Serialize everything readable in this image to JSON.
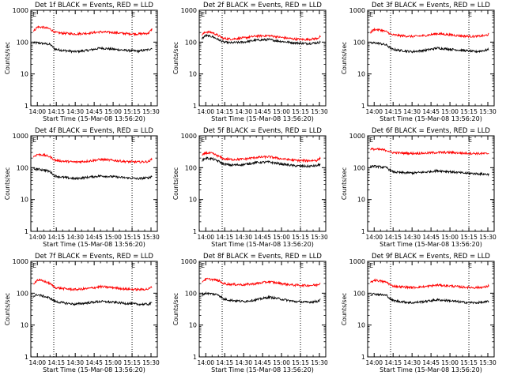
{
  "figure": {
    "xlabel": "Start Time (15-Mar-08 13:56:20)",
    "ylabel": "Counts/sec",
    "xticks": [
      "14:00",
      "14:15",
      "14:30",
      "14:45",
      "15:00",
      "15:15",
      "15:30"
    ],
    "yticks": [
      "1",
      "10",
      "100",
      "1000"
    ],
    "marker_label": "E",
    "colors": {
      "events": "#000000",
      "lld": "#ff0000",
      "axes": "#000000",
      "background": "#ffffff"
    }
  },
  "chart_data": [
    {
      "type": "line",
      "title": "Det 1f BLACK = Events, RED = LLD",
      "xlabel": "Start Time (15-Mar-08 13:56:20)",
      "ylabel": "Counts/sec",
      "ylim": [
        1,
        1000
      ],
      "yscale": "log",
      "grid": false,
      "x": [
        "13:57",
        "14:00",
        "14:05",
        "14:10",
        "14:14",
        "14:20",
        "14:30",
        "14:40",
        "14:50",
        "15:00",
        "15:10",
        "15:20",
        "15:28",
        "15:31"
      ],
      "series": [
        {
          "name": "Events",
          "color": "#000000",
          "values": [
            95,
            95,
            90,
            85,
            60,
            55,
            50,
            55,
            65,
            60,
            55,
            52,
            58,
            65
          ]
        },
        {
          "name": "LLD",
          "color": "#ff0000",
          "values": [
            220,
            300,
            290,
            260,
            200,
            190,
            180,
            190,
            210,
            200,
            185,
            180,
            190,
            260
          ]
        }
      ],
      "markers": [
        "14:13",
        "15:15"
      ]
    },
    {
      "type": "line",
      "title": "Det 2f BLACK = Events, RED = LLD",
      "xlabel": "Start Time (15-Mar-08 13:56:20)",
      "ylabel": "Counts/sec",
      "ylim": [
        1,
        1000
      ],
      "yscale": "log",
      "grid": false,
      "x": [
        "13:57",
        "14:00",
        "14:05",
        "14:10",
        "14:14",
        "14:20",
        "14:30",
        "14:40",
        "14:50",
        "15:00",
        "15:10",
        "15:20",
        "15:28",
        "15:31"
      ],
      "series": [
        {
          "name": "Events",
          "color": "#000000",
          "values": [
            130,
            160,
            150,
            120,
            100,
            95,
            100,
            115,
            120,
            105,
            95,
            90,
            95,
            100
          ]
        },
        {
          "name": "LLD",
          "color": "#ff0000",
          "values": [
            170,
            210,
            200,
            160,
            130,
            125,
            135,
            155,
            160,
            140,
            125,
            120,
            130,
            150
          ]
        }
      ],
      "markers": [
        "14:13",
        "15:15"
      ]
    },
    {
      "type": "line",
      "title": "Det 3f BLACK = Events, RED = LLD",
      "xlabel": "Start Time (15-Mar-08 13:56:20)",
      "ylabel": "Counts/sec",
      "ylim": [
        1,
        1000
      ],
      "yscale": "log",
      "grid": false,
      "x": [
        "13:57",
        "14:00",
        "14:05",
        "14:10",
        "14:14",
        "14:20",
        "14:30",
        "14:40",
        "14:50",
        "15:00",
        "15:10",
        "15:20",
        "15:28",
        "15:31"
      ],
      "series": [
        {
          "name": "Events",
          "color": "#000000",
          "values": [
            90,
            95,
            90,
            80,
            60,
            55,
            50,
            55,
            65,
            60,
            55,
            50,
            55,
            60
          ]
        },
        {
          "name": "LLD",
          "color": "#ff0000",
          "values": [
            200,
            250,
            240,
            210,
            170,
            160,
            150,
            160,
            185,
            170,
            155,
            150,
            160,
            180
          ]
        }
      ],
      "markers": [
        "14:13",
        "15:15"
      ]
    },
    {
      "type": "line",
      "title": "Det 4f BLACK = Events, RED = LLD",
      "xlabel": "Start Time (15-Mar-08 13:56:20)",
      "ylabel": "Counts/sec",
      "ylim": [
        1,
        1000
      ],
      "yscale": "log",
      "grid": false,
      "x": [
        "13:57",
        "14:00",
        "14:05",
        "14:10",
        "14:14",
        "14:20",
        "14:30",
        "14:40",
        "14:50",
        "15:00",
        "15:10",
        "15:20",
        "15:28",
        "15:31"
      ],
      "series": [
        {
          "name": "Events",
          "color": "#000000",
          "values": [
            90,
            90,
            85,
            75,
            55,
            50,
            45,
            50,
            55,
            52,
            48,
            45,
            48,
            55
          ]
        },
        {
          "name": "LLD",
          "color": "#ff0000",
          "values": [
            220,
            260,
            250,
            220,
            170,
            160,
            150,
            160,
            180,
            170,
            155,
            150,
            155,
            190
          ]
        }
      ],
      "markers": [
        "14:13",
        "15:15"
      ]
    },
    {
      "type": "line",
      "title": "Det 5f BLACK = Events, RED = LLD",
      "xlabel": "Start Time (15-Mar-08 13:56:20)",
      "ylabel": "Counts/sec",
      "ylim": [
        1,
        1000
      ],
      "yscale": "log",
      "grid": false,
      "x": [
        "13:57",
        "14:00",
        "14:05",
        "14:10",
        "14:14",
        "14:20",
        "14:30",
        "14:40",
        "14:50",
        "15:00",
        "15:10",
        "15:20",
        "15:28",
        "15:31"
      ],
      "series": [
        {
          "name": "Events",
          "color": "#000000",
          "values": [
            170,
            200,
            190,
            160,
            130,
            120,
            125,
            145,
            150,
            130,
            115,
            110,
            115,
            130
          ]
        },
        {
          "name": "LLD",
          "color": "#ff0000",
          "values": [
            240,
            290,
            280,
            230,
            190,
            180,
            185,
            210,
            220,
            190,
            170,
            165,
            170,
            200
          ]
        }
      ],
      "markers": [
        "14:13",
        "15:15"
      ]
    },
    {
      "type": "line",
      "title": "Det 6f BLACK = Events, RED = LLD",
      "xlabel": "Start Time (15-Mar-08 13:56:20)",
      "ylabel": "Counts/sec",
      "ylim": [
        1,
        1000
      ],
      "yscale": "log",
      "grid": false,
      "x": [
        "13:57",
        "14:00",
        "14:05",
        "14:10",
        "14:14",
        "14:20",
        "14:30",
        "14:40",
        "14:50",
        "15:00",
        "15:10",
        "15:20",
        "15:28",
        "15:31"
      ],
      "series": [
        {
          "name": "Events",
          "color": "#000000",
          "values": [
            110,
            110,
            105,
            100,
            75,
            70,
            68,
            72,
            80,
            75,
            68,
            65,
            62,
            62
          ]
        },
        {
          "name": "LLD",
          "color": "#ff0000",
          "values": [
            380,
            380,
            370,
            350,
            300,
            290,
            280,
            285,
            300,
            300,
            285,
            280,
            275,
            280
          ]
        }
      ],
      "markers": [
        "14:13",
        "15:15"
      ]
    },
    {
      "type": "line",
      "title": "Det 7f BLACK = Events, RED = LLD",
      "xlabel": "Start Time (15-Mar-08 13:56:20)",
      "ylabel": "Counts/sec",
      "ylim": [
        1,
        1000
      ],
      "yscale": "log",
      "grid": false,
      "x": [
        "13:57",
        "14:00",
        "14:05",
        "14:10",
        "14:14",
        "14:20",
        "14:30",
        "14:40",
        "14:50",
        "15:00",
        "15:10",
        "15:20",
        "15:28",
        "15:31"
      ],
      "series": [
        {
          "name": "Events",
          "color": "#000000",
          "values": [
            80,
            90,
            80,
            70,
            55,
            50,
            45,
            50,
            55,
            52,
            48,
            45,
            45,
            50
          ]
        },
        {
          "name": "LLD",
          "color": "#ff0000",
          "values": [
            200,
            260,
            240,
            200,
            150,
            140,
            130,
            140,
            160,
            150,
            135,
            130,
            135,
            160
          ]
        }
      ],
      "markers": [
        "14:13",
        "15:15"
      ]
    },
    {
      "type": "line",
      "title": "Det 8f BLACK = Events, RED = LLD",
      "xlabel": "Start Time (15-Mar-08 13:56:20)",
      "ylabel": "Counts/sec",
      "ylim": [
        1,
        1000
      ],
      "yscale": "log",
      "grid": false,
      "x": [
        "13:57",
        "14:00",
        "14:05",
        "14:10",
        "14:14",
        "14:20",
        "14:30",
        "14:40",
        "14:50",
        "15:00",
        "15:10",
        "15:20",
        "15:28",
        "15:31"
      ],
      "series": [
        {
          "name": "Events",
          "color": "#000000",
          "values": [
            90,
            100,
            95,
            90,
            65,
            60,
            55,
            62,
            75,
            65,
            55,
            52,
            55,
            62
          ]
        },
        {
          "name": "LLD",
          "color": "#ff0000",
          "values": [
            230,
            280,
            270,
            250,
            200,
            190,
            185,
            200,
            230,
            200,
            180,
            175,
            180,
            210
          ]
        }
      ],
      "markers": [
        "14:13",
        "15:15"
      ]
    },
    {
      "type": "line",
      "title": "Det 9f BLACK = Events, RED = LLD",
      "xlabel": "Start Time (15-Mar-08 13:56:20)",
      "ylabel": "Counts/sec",
      "ylim": [
        1,
        1000
      ],
      "yscale": "log",
      "grid": false,
      "x": [
        "13:57",
        "14:00",
        "14:05",
        "14:10",
        "14:14",
        "14:20",
        "14:30",
        "14:40",
        "14:50",
        "15:00",
        "15:10",
        "15:20",
        "15:28",
        "15:31"
      ],
      "series": [
        {
          "name": "Events",
          "color": "#000000",
          "values": [
            90,
            95,
            90,
            85,
            60,
            55,
            50,
            55,
            62,
            58,
            52,
            50,
            52,
            58
          ]
        },
        {
          "name": "LLD",
          "color": "#ff0000",
          "values": [
            210,
            260,
            240,
            220,
            170,
            160,
            150,
            160,
            180,
            170,
            155,
            150,
            155,
            175
          ]
        }
      ],
      "markers": [
        "14:13",
        "15:15"
      ]
    }
  ]
}
